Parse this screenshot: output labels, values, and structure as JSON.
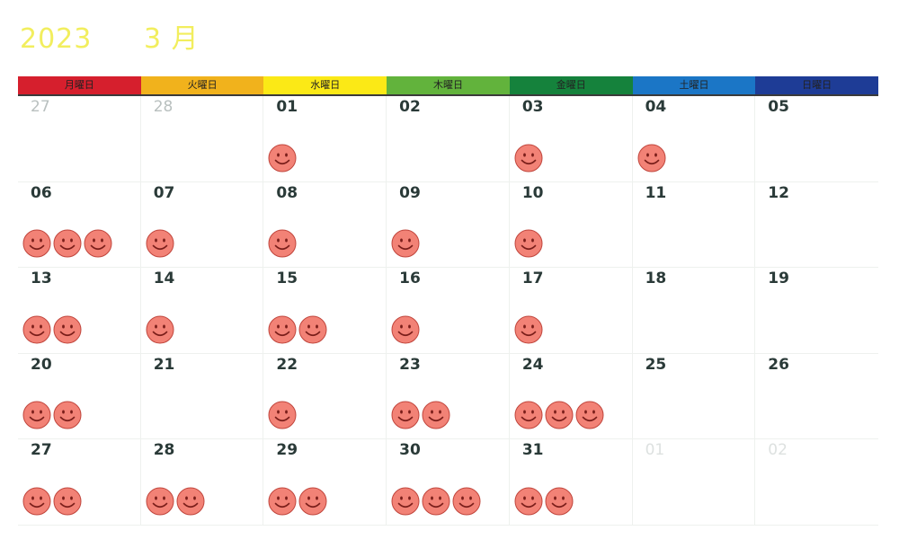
{
  "calendar": {
    "year": "2023",
    "month": "3 月",
    "weekdays": [
      {
        "label": "月曜日",
        "color": "#d61f2d"
      },
      {
        "label": "火曜日",
        "color": "#f1b21c"
      },
      {
        "label": "水曜日",
        "color": "#fbe916"
      },
      {
        "label": "木曜日",
        "color": "#62b33c"
      },
      {
        "label": "金曜日",
        "color": "#15823c"
      },
      {
        "label": "土曜日",
        "color": "#1b76c6"
      },
      {
        "label": "日曜日",
        "color": "#1e3c96"
      }
    ],
    "days": [
      {
        "label": "27",
        "style": "muted",
        "stickers": 0
      },
      {
        "label": "28",
        "style": "muted",
        "stickers": 0
      },
      {
        "label": "01",
        "style": "normal",
        "stickers": 1
      },
      {
        "label": "02",
        "style": "normal",
        "stickers": 0
      },
      {
        "label": "03",
        "style": "normal",
        "stickers": 1
      },
      {
        "label": "04",
        "style": "normal",
        "stickers": 1
      },
      {
        "label": "05",
        "style": "normal",
        "stickers": 0
      },
      {
        "label": "06",
        "style": "normal",
        "stickers": 3
      },
      {
        "label": "07",
        "style": "normal",
        "stickers": 1
      },
      {
        "label": "08",
        "style": "normal",
        "stickers": 1
      },
      {
        "label": "09",
        "style": "normal",
        "stickers": 1
      },
      {
        "label": "10",
        "style": "normal",
        "stickers": 1
      },
      {
        "label": "11",
        "style": "normal",
        "stickers": 0
      },
      {
        "label": "12",
        "style": "normal",
        "stickers": 0
      },
      {
        "label": "13",
        "style": "normal",
        "stickers": 2
      },
      {
        "label": "14",
        "style": "normal",
        "stickers": 1
      },
      {
        "label": "15",
        "style": "normal",
        "stickers": 2
      },
      {
        "label": "16",
        "style": "normal",
        "stickers": 1
      },
      {
        "label": "17",
        "style": "normal",
        "stickers": 1
      },
      {
        "label": "18",
        "style": "normal",
        "stickers": 0
      },
      {
        "label": "19",
        "style": "normal",
        "stickers": 0
      },
      {
        "label": "20",
        "style": "normal",
        "stickers": 2
      },
      {
        "label": "21",
        "style": "normal",
        "stickers": 0
      },
      {
        "label": "22",
        "style": "normal",
        "stickers": 1
      },
      {
        "label": "23",
        "style": "normal",
        "stickers": 2
      },
      {
        "label": "24",
        "style": "normal",
        "stickers": 3
      },
      {
        "label": "25",
        "style": "normal",
        "stickers": 0
      },
      {
        "label": "26",
        "style": "normal",
        "stickers": 0
      },
      {
        "label": "27",
        "style": "normal",
        "stickers": 2
      },
      {
        "label": "28",
        "style": "normal",
        "stickers": 2
      },
      {
        "label": "29",
        "style": "normal",
        "stickers": 2
      },
      {
        "label": "30",
        "style": "normal",
        "stickers": 3
      },
      {
        "label": "31",
        "style": "normal",
        "stickers": 2
      },
      {
        "label": "01",
        "style": "faint",
        "stickers": 0
      },
      {
        "label": "02",
        "style": "faint",
        "stickers": 0
      }
    ],
    "sticker": {
      "icon": "smiley-face-icon",
      "fill": "#f28276",
      "stroke": "#c0453c",
      "face": "#7a1e1a"
    }
  }
}
